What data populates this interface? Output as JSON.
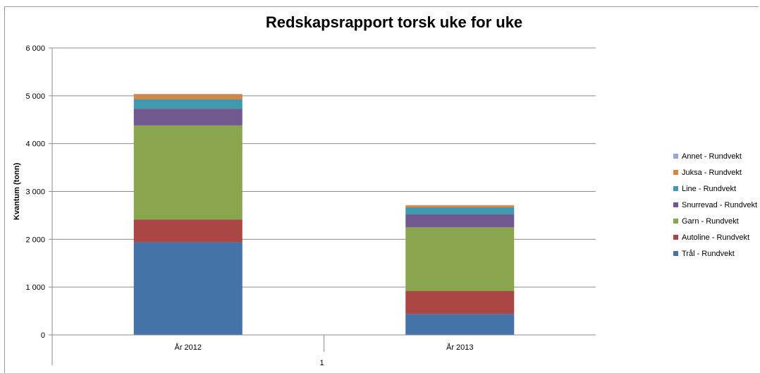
{
  "chart_data": {
    "type": "bar",
    "stacked": true,
    "title": "Redskapsrapport torsk uke for uke",
    "xlabel": "1",
    "ylabel": "Kvantum (tonn)",
    "ylim": [
      0,
      6000
    ],
    "yticks": [
      {
        "value": 0,
        "label": "0"
      },
      {
        "value": 1000,
        "label": "1 000"
      },
      {
        "value": 2000,
        "label": "2 000"
      },
      {
        "value": 3000,
        "label": "3 000"
      },
      {
        "value": 4000,
        "label": "4 000"
      },
      {
        "value": 5000,
        "label": "5 000"
      },
      {
        "value": 6000,
        "label": "6 000"
      }
    ],
    "grid": true,
    "legend_position": "right",
    "categories": [
      "År 2012",
      "År 2013"
    ],
    "series": [
      {
        "name": "Trål - Rundvekt",
        "color": "#4572A7",
        "values": [
          1940,
          440
        ]
      },
      {
        "name": "Autoline - Rundvekt",
        "color": "#AA4643",
        "values": [
          470,
          480
        ]
      },
      {
        "name": "Garn - Rundvekt",
        "color": "#89A54E",
        "values": [
          1970,
          1330
        ]
      },
      {
        "name": "Snurrevad - Rundvekt",
        "color": "#71588F",
        "values": [
          350,
          270
        ]
      },
      {
        "name": "Line - Rundvekt",
        "color": "#4198AF",
        "values": [
          200,
          150
        ]
      },
      {
        "name": "Juksa - Rundvekt",
        "color": "#DB843D",
        "values": [
          100,
          40
        ]
      },
      {
        "name": "Annet - Rundvekt",
        "color": "#93A9CF",
        "values": [
          10,
          5
        ]
      }
    ]
  }
}
